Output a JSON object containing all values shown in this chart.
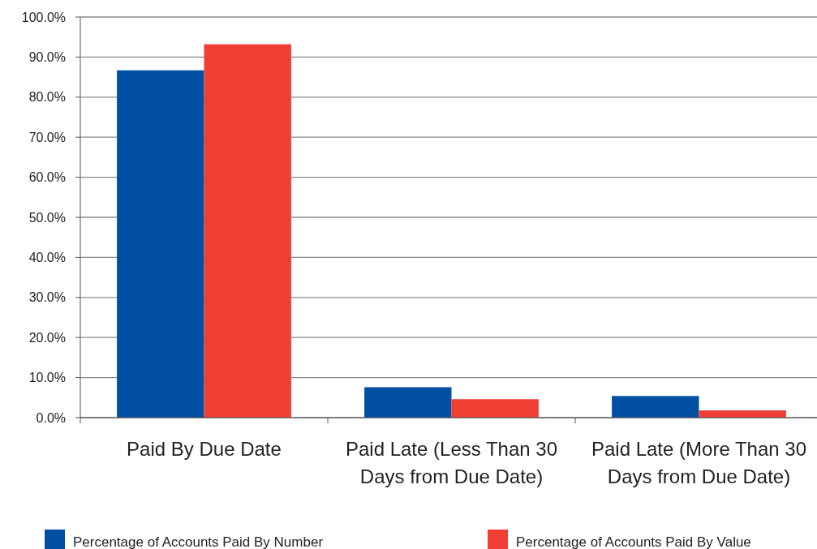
{
  "chart_data": {
    "type": "bar",
    "categories": [
      "Paid By Due Date",
      "Paid Late (Less Than 30 Days from Due Date)",
      "Paid Late (More Than 30 Days from Due Date)"
    ],
    "series": [
      {
        "name": "Percentage of Accounts Paid By Number",
        "color": "#004fa2",
        "values": [
          86.7,
          7.6,
          5.4
        ]
      },
      {
        "name": "Percentage of Accounts Paid By Value",
        "color": "#ef3e33",
        "values": [
          93.2,
          4.6,
          1.8
        ]
      }
    ],
    "ylim": [
      0,
      100
    ],
    "yticks": [
      {
        "value": 0,
        "label": "0.0%"
      },
      {
        "value": 10,
        "label": "10.0%"
      },
      {
        "value": 20,
        "label": "20.0%"
      },
      {
        "value": 30,
        "label": "30.0%"
      },
      {
        "value": 40,
        "label": "40.0%"
      },
      {
        "value": 50,
        "label": "50.0%"
      },
      {
        "value": 60,
        "label": "60.0%"
      },
      {
        "value": 70,
        "label": "70.0%"
      },
      {
        "value": 80,
        "label": "80.0%"
      },
      {
        "value": 90,
        "label": "90.0%"
      },
      {
        "value": 100,
        "label": "100.0%"
      }
    ],
    "grid": "y",
    "legend": "bottom"
  }
}
